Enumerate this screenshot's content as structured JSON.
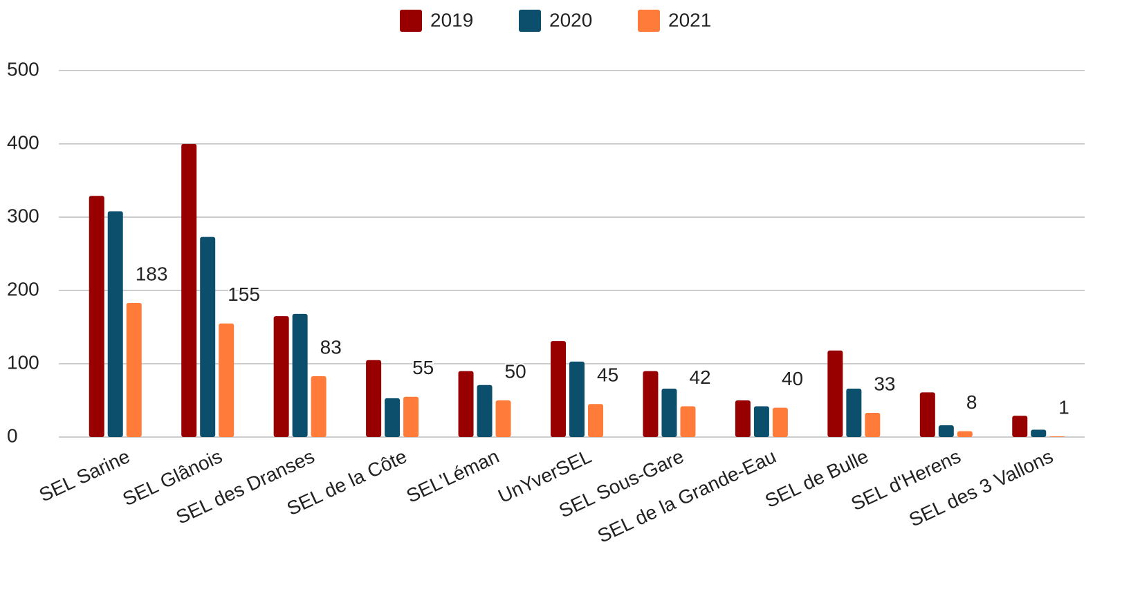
{
  "chart_data": {
    "type": "bar",
    "categories": [
      "SEL Sarine",
      "SEL Glânois",
      "SEL des Dranses",
      "SEL de la Côte",
      "SEL'Léman",
      "UnYverSEL",
      "SEL Sous-Gare",
      "SEL de la Grande-Eau",
      "SEL de Bulle",
      "SEL d'Herens",
      "SEL des 3 Vallons"
    ],
    "series": [
      {
        "name": "2019",
        "color": "#980000",
        "values": [
          329,
          400,
          165,
          105,
          90,
          131,
          90,
          50,
          118,
          61,
          29
        ]
      },
      {
        "name": "2020",
        "color": "#0b4f6c",
        "values": [
          308,
          273,
          168,
          53,
          71,
          103,
          66,
          42,
          66,
          16,
          10
        ]
      },
      {
        "name": "2021",
        "color": "#ff7b39",
        "values": [
          183,
          155,
          83,
          55,
          50,
          45,
          42,
          40,
          33,
          8,
          1
        ],
        "data_labels": true
      }
    ],
    "ylim": [
      0,
      500
    ],
    "yticks": [
      0,
      100,
      200,
      300,
      400,
      500
    ],
    "grid": true,
    "legend": "top"
  }
}
